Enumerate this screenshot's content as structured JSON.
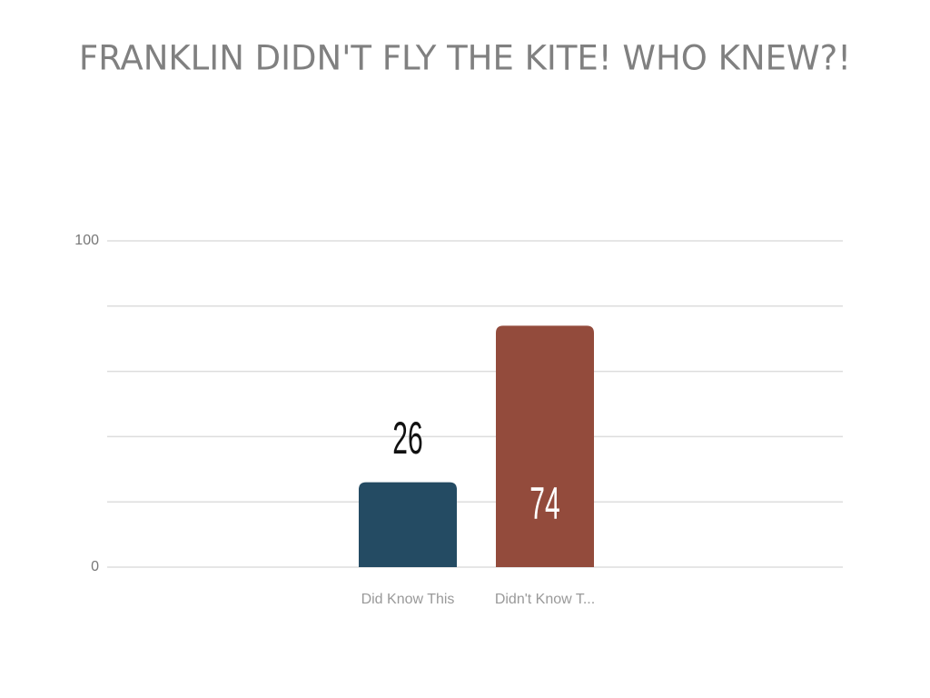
{
  "chart_data": {
    "type": "bar",
    "title": "FRANKLIN DIDN'T FLY THE KITE! WHO KNEW?!",
    "categories": [
      "Did Know This",
      "Didn't Know T..."
    ],
    "values": [
      26,
      74
    ],
    "colors": [
      "#244b63",
      "#934b3c"
    ],
    "ylim": [
      0,
      100
    ],
    "yticks": [
      0,
      100
    ],
    "minor_gridlines": [
      20,
      40,
      60,
      80
    ],
    "grid": true
  }
}
